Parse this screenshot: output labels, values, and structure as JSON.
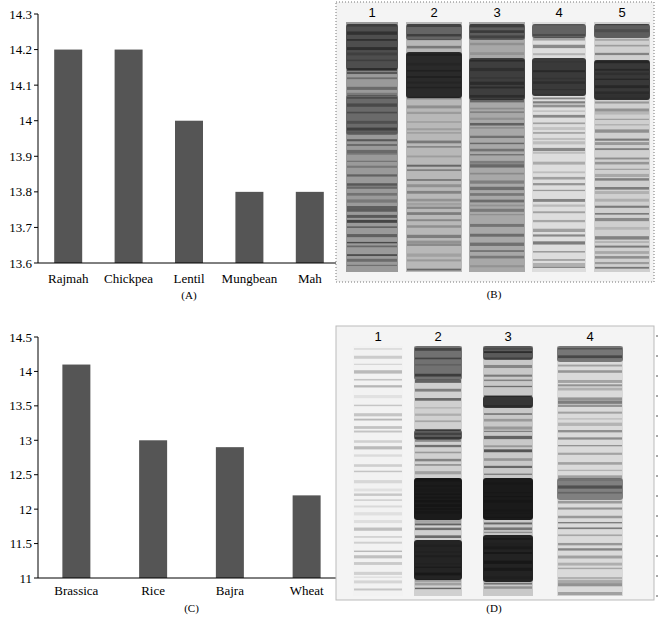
{
  "chart_data": [
    {
      "type": "bar",
      "title": "(A)",
      "categories": [
        "Rajmah",
        "Chickpea",
        "Lentil",
        "Mungbean",
        "Mah"
      ],
      "values": [
        14.2,
        14.2,
        14,
        13.8,
        13.8
      ],
      "color": "#555555",
      "ylim": [
        13.6,
        14.3
      ],
      "yticks": [
        13.6,
        13.7,
        13.8,
        13.9,
        14,
        14.1,
        14.2,
        14.3
      ],
      "grid": false
    },
    {
      "type": "bar",
      "title": "(C)",
      "categories": [
        "Brassica",
        "Rice",
        "Bajra",
        "Wheat"
      ],
      "values": [
        14.1,
        13,
        12.9,
        12.2
      ],
      "color": "#555555",
      "ylim": [
        11,
        14.5
      ],
      "yticks": [
        11,
        11.5,
        12,
        12.5,
        13,
        13.5,
        14,
        14.5
      ],
      "grid": false
    }
  ],
  "gels": [
    {
      "label": "(B)",
      "lanes": [
        "1",
        "2",
        "3",
        "4",
        "5"
      ]
    },
    {
      "label": "(D)",
      "lanes": [
        "1",
        "2",
        "3",
        "4"
      ]
    }
  ]
}
